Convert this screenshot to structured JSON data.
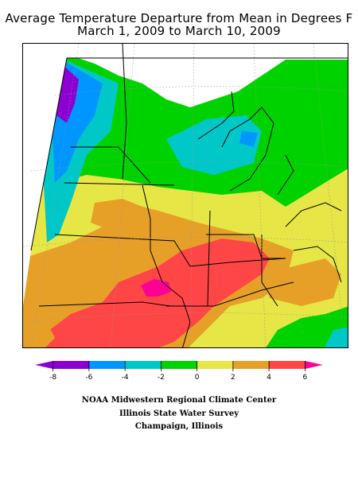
{
  "title": {
    "line1": "Average Temperature Departure from Mean in Degrees F",
    "line2": "March 1, 2009 to March 10, 2009"
  },
  "legend": {
    "min": -9,
    "max": 7,
    "bins": [
      {
        "from": -9,
        "to": -8,
        "color": "#8c00d2"
      },
      {
        "from": -8,
        "to": -6,
        "color": "#8c00d2"
      },
      {
        "from": -6,
        "to": -4,
        "color": "#0096ff"
      },
      {
        "from": -4,
        "to": -2,
        "color": "#00c8c8"
      },
      {
        "from": -2,
        "to": 0,
        "color": "#00d200"
      },
      {
        "from": 0,
        "to": 2,
        "color": "#e6e646"
      },
      {
        "from": 2,
        "to": 4,
        "color": "#e6a028"
      },
      {
        "from": 4,
        "to": 6,
        "color": "#ff4646"
      },
      {
        "from": 6,
        "to": 7,
        "color": "#ff0096"
      }
    ],
    "tick_labels": [
      "-8",
      "-6",
      "-4",
      "-2",
      "0",
      "2",
      "4",
      "6"
    ]
  },
  "colors": {
    "purple": "#8c00d2",
    "blue": "#0096ff",
    "cyan": "#00c8c8",
    "green": "#00d200",
    "yellow": "#e6e646",
    "orange": "#e6a028",
    "red": "#ff4646",
    "magenta": "#ff0096"
  },
  "credits": {
    "line1": "NOAA Midwestern Regional Climate Center",
    "line2": "Illinois State Water Survey",
    "line3": "Champaign, Illinois"
  }
}
